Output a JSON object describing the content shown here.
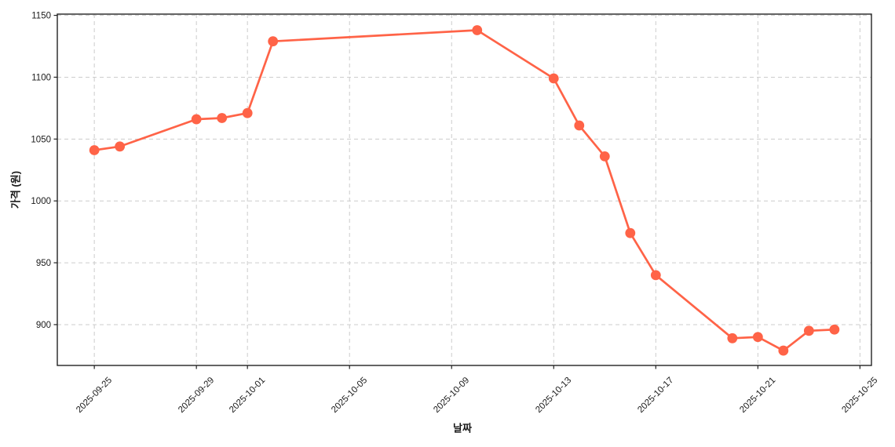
{
  "chart_data": {
    "type": "line",
    "title": "",
    "xlabel": "날짜",
    "ylabel": "가격 (원)",
    "series": [
      {
        "x": [
          "2025-09-25",
          "2025-09-26",
          "2025-09-29",
          "2025-09-30",
          "2025-10-01",
          "2025-10-02",
          "2025-10-10",
          "2025-10-13",
          "2025-10-14",
          "2025-10-15",
          "2025-10-16",
          "2025-10-17",
          "2025-10-20",
          "2025-10-21",
          "2025-10-22",
          "2025-10-23",
          "2025-10-24"
        ],
        "y": [
          1041,
          1044,
          1066,
          1067,
          1071,
          1129,
          1138,
          1099,
          1061,
          1036,
          974,
          940,
          889,
          890,
          879,
          895,
          896
        ]
      }
    ],
    "x_tick_labels": [
      "2025-09-25",
      "2025-09-29",
      "2025-10-01",
      "2025-10-05",
      "2025-10-09",
      "2025-10-13",
      "2025-10-17",
      "2025-10-21",
      "2025-10-25"
    ],
    "y_ticks": [
      900,
      950,
      1000,
      1050,
      1100,
      1150
    ],
    "ylim": [
      867,
      1151
    ],
    "x_pad_frac": 0.05,
    "grid": "dashed",
    "legend": "none",
    "line_color": "#ff6347",
    "marker": "circle",
    "background": "#ffffff"
  }
}
